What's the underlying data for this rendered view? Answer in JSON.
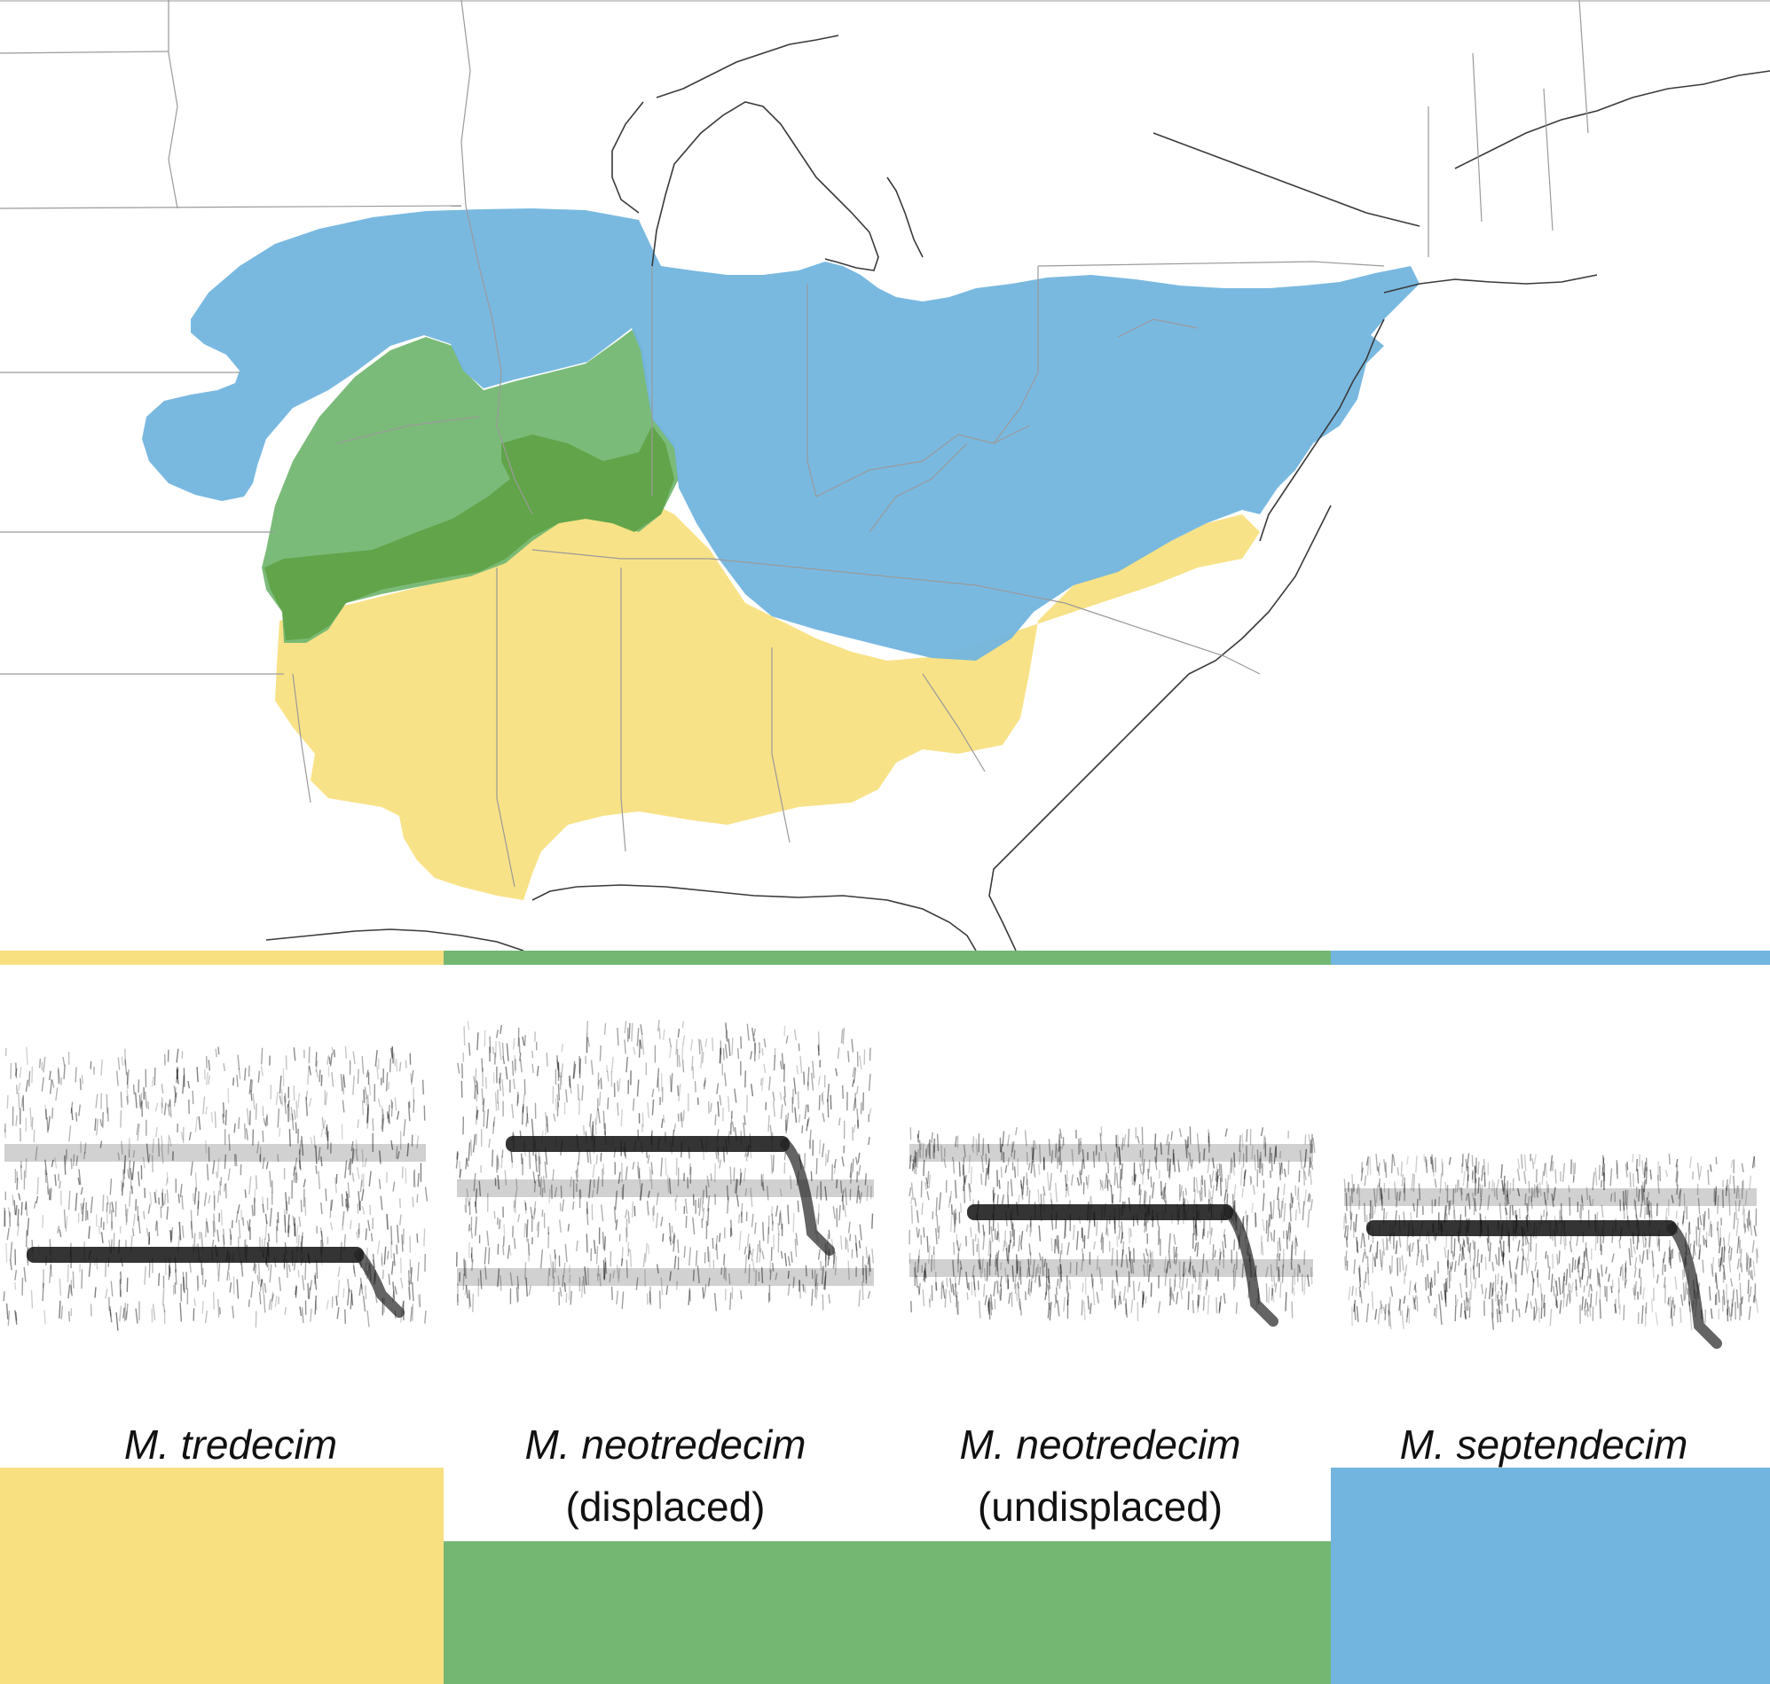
{
  "colors": {
    "tredecim": "#F8E081",
    "neotredecim": "#74B772",
    "septendecim": "#72B5DE",
    "overlap": "#5FA245",
    "borders": "#9a9a9a",
    "coast": "#3a3a3a"
  },
  "map": {
    "ranges": [
      {
        "species": "M. tredecim",
        "color_key": "tredecim"
      },
      {
        "species": "M. neotredecim",
        "color_key": "neotredecim"
      },
      {
        "species": "M. septendecim",
        "color_key": "septendecim"
      }
    ]
  },
  "spectrograms": [
    {
      "id": "tredecim"
    },
    {
      "id": "neotredecim-displaced"
    },
    {
      "id": "neotredecim-undisplaced"
    },
    {
      "id": "septendecim"
    }
  ],
  "labels": [
    {
      "species": "M. tredecim",
      "qualifier": ""
    },
    {
      "species": "M. neotredecim",
      "qualifier": "(displaced)"
    },
    {
      "species": "M. neotredecim",
      "qualifier": "(undisplaced)"
    },
    {
      "species": "M. septendecim",
      "qualifier": ""
    }
  ]
}
